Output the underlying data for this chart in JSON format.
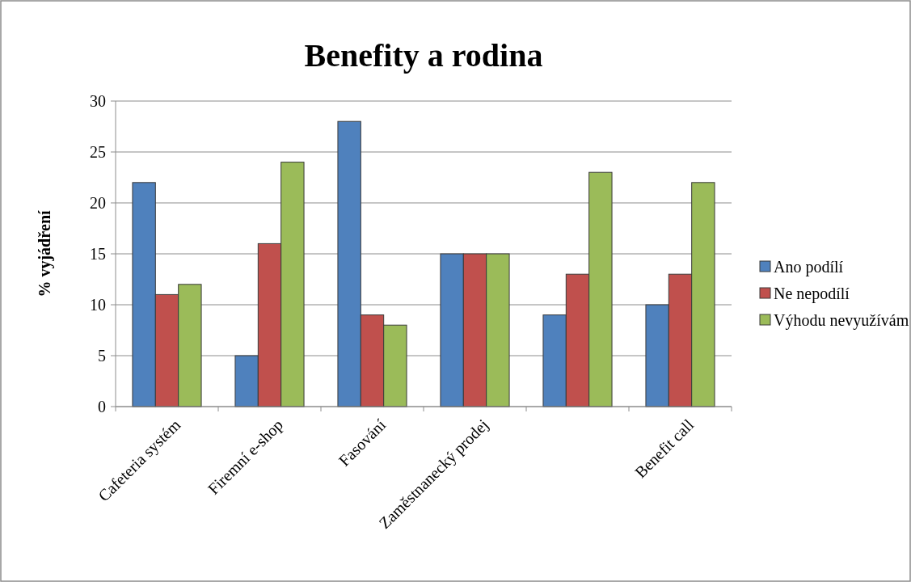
{
  "chart_data": {
    "type": "bar",
    "title": "Benefity a rodina",
    "ylabel": "% vyjádření",
    "categories": [
      "Cafeteria systém",
      "Firemní e-shop",
      "Fasování",
      "Zaměstnanecký prodej",
      null,
      "Benefit call"
    ],
    "series": [
      {
        "name": "Ano podílí",
        "color": "#4f81bd",
        "values": [
          22,
          5,
          28,
          15,
          9,
          10
        ]
      },
      {
        "name": "Ne nepodílí",
        "color": "#c0504d",
        "values": [
          11,
          16,
          9,
          15,
          13,
          13
        ]
      },
      {
        "name": "Výhodu nevyužívám",
        "color": "#9bbb59",
        "values": [
          12,
          24,
          8,
          15,
          23,
          22
        ]
      }
    ],
    "ylim": [
      0,
      30
    ],
    "yticks": [
      0,
      5,
      10,
      15,
      20,
      25,
      30
    ],
    "grid": "y",
    "legend": "right"
  }
}
